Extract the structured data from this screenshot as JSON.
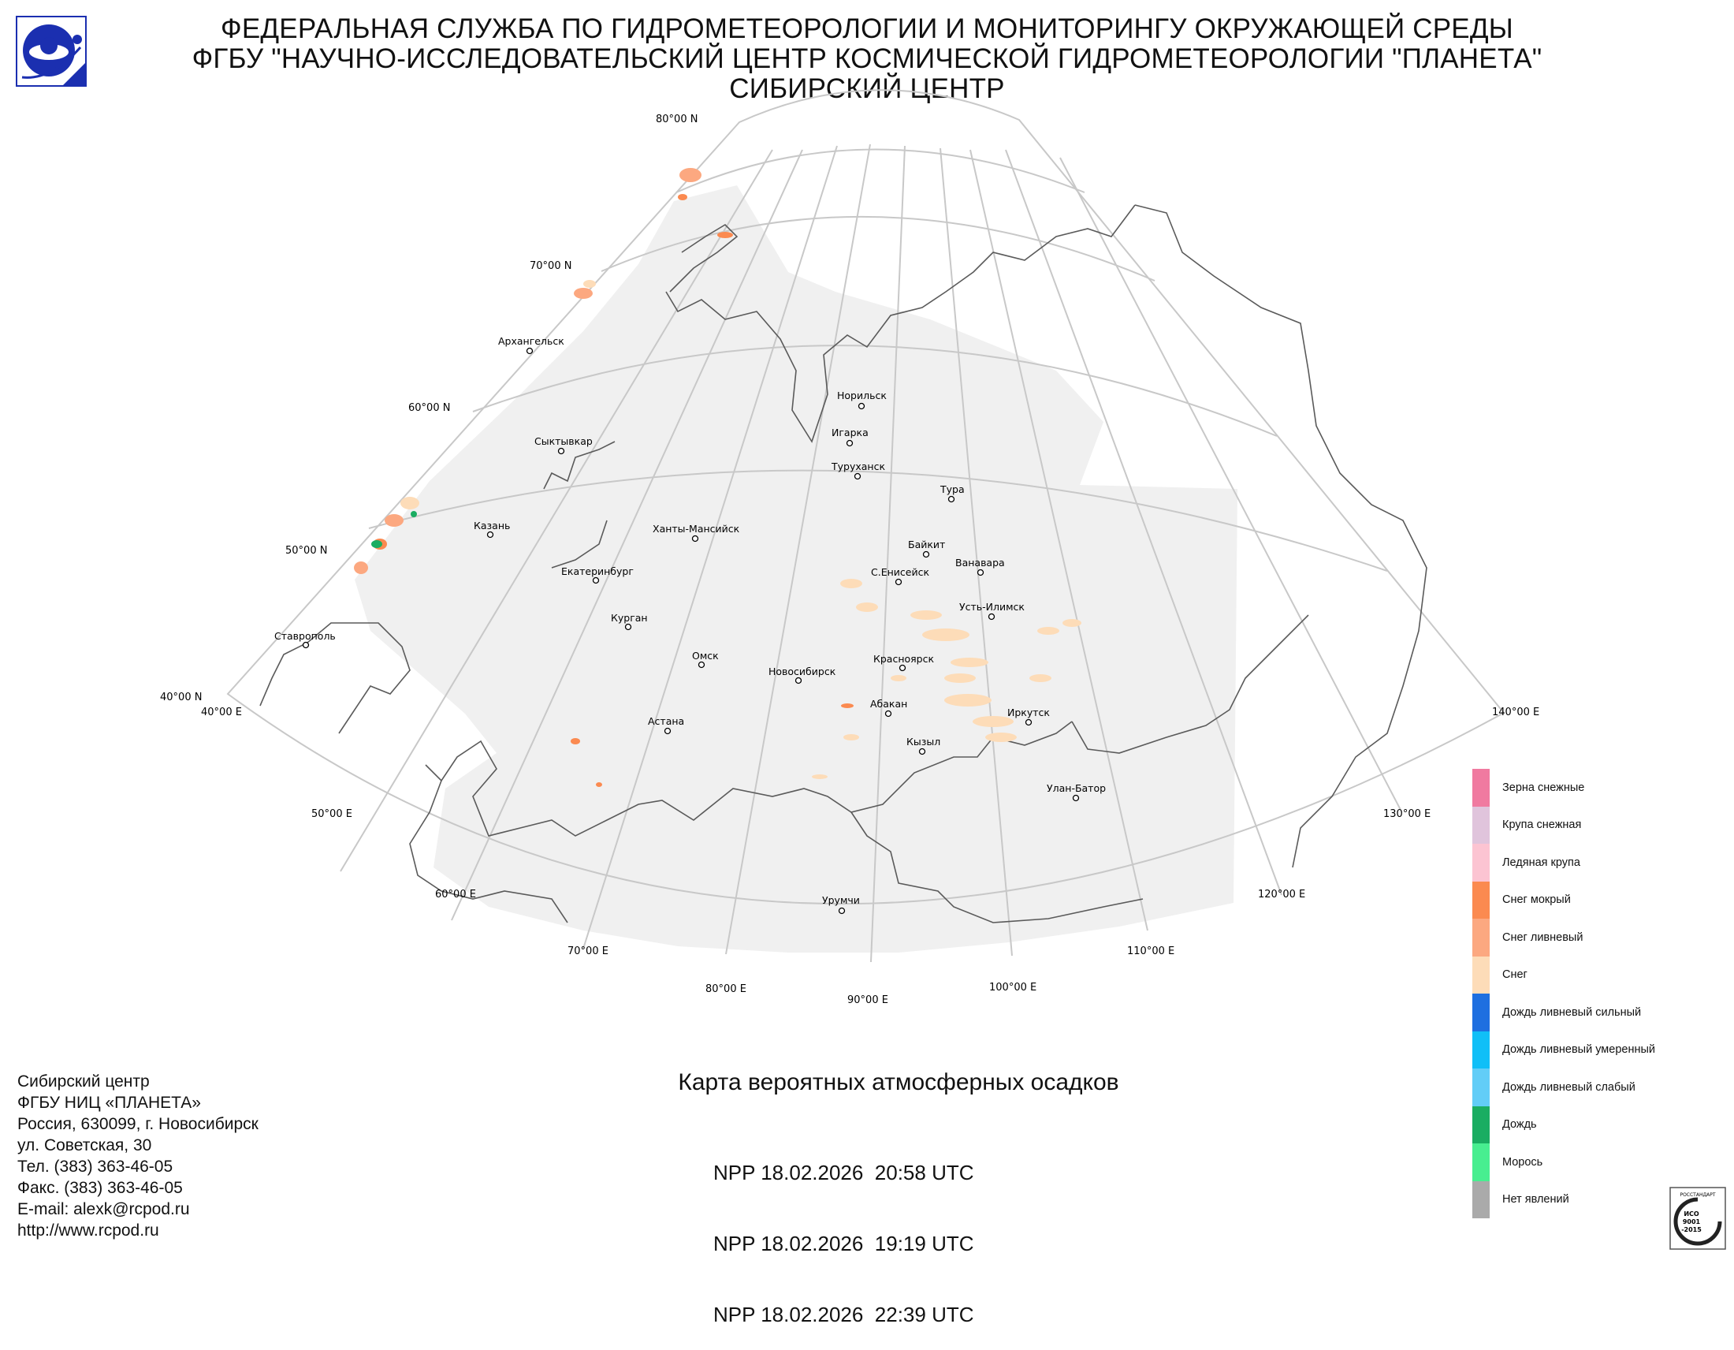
{
  "header": {
    "line1": "ФЕДЕРАЛЬНАЯ СЛУЖБА ПО ГИДРОМЕТЕОРОЛОГИИ И МОНИТОРИНГУ ОКРУЖАЮЩЕЙ СРЕДЫ",
    "line2": "ФГБУ \"НАУЧНО-ИССЛЕДОВАТЕЛЬСКИЙ ЦЕНТР КОСМИЧЕСКОЙ ГИДРОМЕТЕОРОЛОГИИ \"ПЛАНЕТА\"",
    "line3": "СИБИРСКИЙ ЦЕНТР"
  },
  "map": {
    "lat_labels": [
      "80°00 N",
      "70°00 N",
      "60°00 N",
      "50°00 N",
      "40°00 N"
    ],
    "lon_labels": [
      "40°00 E",
      "50°00 E",
      "60°00 E",
      "70°00 E",
      "80°00 E",
      "90°00 E",
      "100°00 E",
      "110°00 E",
      "120°00 E",
      "130°00 E",
      "140°00 E"
    ],
    "cities": [
      "Архангельск",
      "Сыктывкар",
      "Казань",
      "Екатеринбург",
      "Курган",
      "Ханты-Мансийск",
      "Ставрополь",
      "Омск",
      "Астана",
      "Новосибирск",
      "Норильск",
      "Игарка",
      "Туруханск",
      "Тура",
      "Байкит",
      "Ванавара",
      "С.Енисейск",
      "Усть-Илимск",
      "Красноярск",
      "Абакан",
      "Иркутск",
      "Кызыл",
      "Улан-Батор",
      "Урумчи"
    ]
  },
  "legend": {
    "items": [
      {
        "label": "Зерна снежные",
        "color": "#f07aa0"
      },
      {
        "label": "Крупа снежная",
        "color": "#e0c4dc"
      },
      {
        "label": "Ледяная крупа",
        "color": "#fcc4d2"
      },
      {
        "label": "Снег мокрый",
        "color": "#fb8a50"
      },
      {
        "label": "Снег ливневый",
        "color": "#fca880"
      },
      {
        "label": "Снег",
        "color": "#fddcb8"
      },
      {
        "label": "Дождь ливневый сильный",
        "color": "#1e6fe0"
      },
      {
        "label": "Дождь ливневый умеренный",
        "color": "#10bff7"
      },
      {
        "label": "Дождь ливневый слабый",
        "color": "#62cdf7"
      },
      {
        "label": "Дождь",
        "color": "#1aad62"
      },
      {
        "label": "Морось",
        "color": "#48ee90"
      },
      {
        "label": "Нет явлений",
        "color": "#aaaaaa"
      }
    ]
  },
  "contacts": {
    "lines": [
      "Сибирский центр",
      "ФГБУ НИЦ «ПЛАНЕТА»",
      "Россия, 630099, г. Новосибирск",
      "ул. Советская, 30",
      "Тел. (383) 363-46-05",
      "Факс. (383) 363-46-05",
      "E-mail: alexk@rcpod.ru",
      "http://www.rcpod.ru"
    ]
  },
  "title": "Карта вероятных атмосферных осадков",
  "passes": [
    "NPP 18.02.2026  20:58 UTC",
    "NPP 18.02.2026  19:19 UTC",
    "NPP 18.02.2026  22:39 UTC"
  ],
  "iso_badge": {
    "arc_text": "РОССТАНДАРТ",
    "lines": [
      "ИСО",
      "9001",
      "-2015"
    ]
  }
}
